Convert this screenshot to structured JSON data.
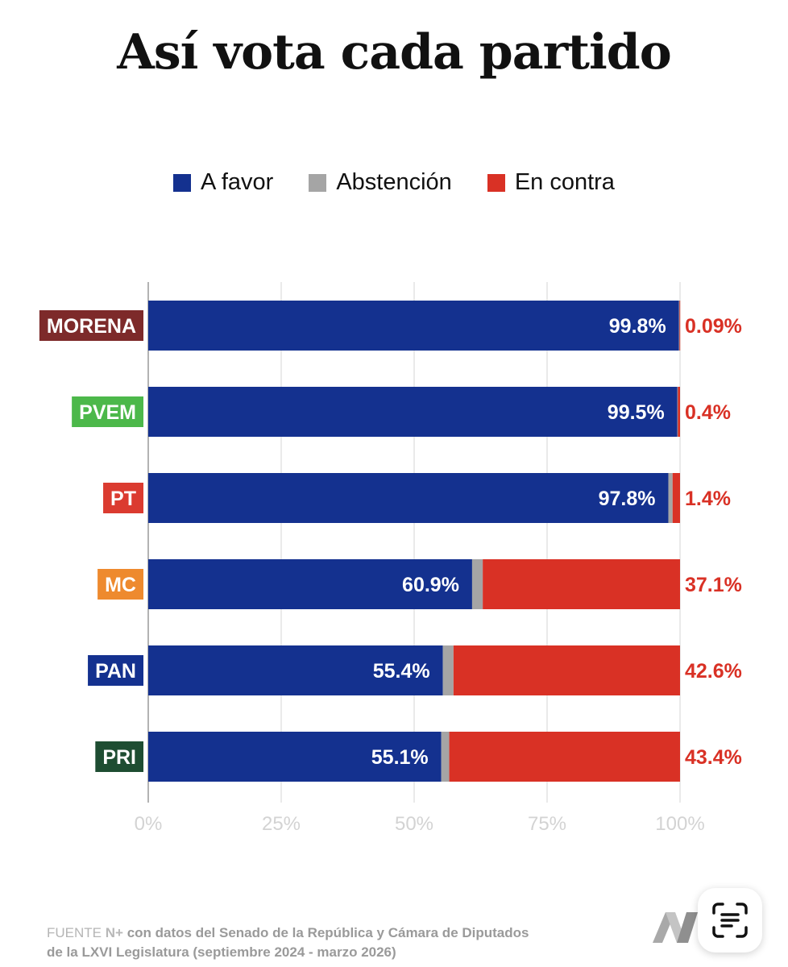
{
  "title": "Así vota cada partido",
  "legend": [
    {
      "label": "A favor",
      "color": "#14318f"
    },
    {
      "label": "Abstención",
      "color": "#a5a5a5"
    },
    {
      "label": "En contra",
      "color": "#d93125"
    }
  ],
  "source": {
    "lead": "FUENTE",
    "brand": "N+",
    "line1": "con datos del Senado de la República y Cámara de Diputados",
    "line2": "de la LXVI Legislatura (septiembre 2024 - marzo 2026)"
  },
  "chart_data": {
    "type": "bar",
    "orientation": "horizontal",
    "stacked": true,
    "title": "Así vota cada partido",
    "xlim": [
      0,
      100
    ],
    "x_ticks": [
      "0%",
      "25%",
      "50%",
      "75%",
      "100%"
    ],
    "grid": true,
    "legend_position": "top",
    "categories": [
      {
        "name": "MORENA",
        "color": "#7d2a2a"
      },
      {
        "name": "PVEM",
        "color": "#4cb84a"
      },
      {
        "name": "PT",
        "color": "#db3b30"
      },
      {
        "name": "MC",
        "color": "#ee8a2e"
      },
      {
        "name": "PAN",
        "color": "#14318f"
      },
      {
        "name": "PRI",
        "color": "#1e4d32"
      }
    ],
    "series": [
      {
        "name": "A favor",
        "color": "#14318f",
        "values": [
          99.8,
          99.5,
          97.8,
          60.9,
          55.4,
          55.1
        ]
      },
      {
        "name": "Abstención",
        "color": "#a5a5a5",
        "values": [
          0.11,
          0.1,
          0.8,
          2.0,
          2.0,
          1.5
        ]
      },
      {
        "name": "En contra",
        "color": "#d93125",
        "values": [
          0.09,
          0.4,
          1.4,
          37.1,
          42.6,
          43.4
        ]
      }
    ],
    "labels_favor": [
      "99.8%",
      "99.5%",
      "97.8%",
      "60.9%",
      "55.4%",
      "55.1%"
    ],
    "labels_contra": [
      "0.09%",
      "0.4%",
      "1.4%",
      "37.1%",
      "42.6%",
      "43.4%"
    ]
  }
}
